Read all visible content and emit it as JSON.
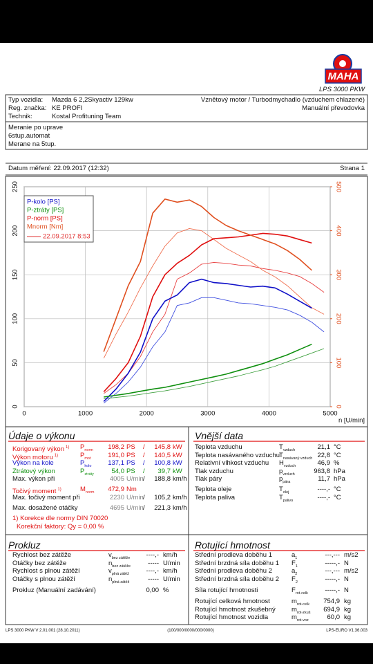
{
  "header": {
    "logo": "MAHA",
    "product": "LPS 3000 PKW"
  },
  "vehicle": {
    "rows": [
      {
        "label": "Typ vozidla:",
        "value": "Mazda 6 2,2Skyactiv 129kw"
      },
      {
        "label": "Reg. značka:",
        "value": "KE PROFI"
      },
      {
        "label": "Technik:",
        "value": "Kostal Profituning Team"
      }
    ],
    "engine": "Vznětový motor / Turbodmychadlo (vzduchem chlazené)",
    "gearbox": "Manuální převodovka"
  },
  "notes": [
    "Meranie po uprave",
    "6stup.automat",
    "Merane na 5tup."
  ],
  "date": "Datum měření: 22.09.2017 (12:32)",
  "page": "Strana 1",
  "chart_data": {
    "type": "line",
    "x_label": "n [U/min]",
    "x": [
      1300,
      1500,
      1700,
      1900,
      2100,
      2300,
      2500,
      2700,
      2900,
      3100,
      3300,
      3500,
      3700,
      3900,
      4100,
      4300,
      4500,
      4700,
      4900
    ],
    "xlim": [
      0,
      5000
    ],
    "xticks": [
      0,
      1000,
      2000,
      3000,
      4000,
      5000
    ],
    "ylim": [
      0,
      250
    ],
    "yticks": [
      0,
      50,
      100,
      150,
      200,
      250
    ],
    "y2lim": [
      0,
      500
    ],
    "y2ticks": [
      0,
      100,
      200,
      300,
      400,
      500
    ],
    "y2_color": "#e05020",
    "grid": true,
    "legend_corner": "upper left",
    "series": [
      {
        "name": "P-kolo [PS]",
        "color": "#1010c8",
        "values": [
          6,
          20,
          38,
          62,
          100,
          120,
          127,
          141,
          145,
          141,
          140,
          138,
          136,
          137,
          135,
          128,
          120,
          112,
          null
        ]
      },
      {
        "name": "P-ztráty [PS]",
        "color": "#109010",
        "values": [
          11,
          13,
          15,
          17.5,
          20,
          22,
          25,
          28,
          31,
          34,
          37,
          41,
          45,
          49,
          54,
          59,
          65,
          71,
          null
        ]
      },
      {
        "name": "P-norm [PS]",
        "color": "#e01010",
        "values": [
          17,
          32,
          50,
          80,
          125,
          150,
          163,
          172,
          184,
          191,
          192,
          193,
          195,
          197,
          196,
          194,
          190,
          186,
          null
        ]
      },
      {
        "name": "Mnorm [Nm]",
        "color": "#e05020",
        "axis": "y2",
        "values": [
          125,
          200,
          275,
          330,
          440,
          472,
          465,
          470,
          455,
          430,
          412,
          400,
          390,
          380,
          370,
          355,
          335,
          310,
          null
        ]
      }
    ],
    "comparison": {
      "name": "22.09.2017 8:53",
      "color": "#e03030",
      "series": [
        {
          "color": "#4050e0",
          "values": [
            4,
            15,
            28,
            45,
            68,
            85,
            115,
            118,
            124,
            124,
            121,
            118,
            117,
            115,
            113,
            110,
            104,
            96,
            85
          ]
        },
        {
          "color": "#40a040",
          "values": [
            9,
            10.5,
            12,
            14,
            16,
            18,
            20.5,
            23,
            26,
            29,
            32,
            35,
            38.5,
            42,
            46,
            51,
            56,
            61,
            66
          ]
        },
        {
          "color": "#e84040",
          "values": [
            15,
            25,
            38,
            57,
            85,
            105,
            145,
            152,
            162,
            164,
            163,
            161,
            160,
            157,
            155,
            152,
            148,
            140,
            130
          ]
        },
        {
          "color": "#f07050",
          "axis": "y2",
          "values": [
            110,
            165,
            215,
            270,
            320,
            365,
            395,
            405,
            400,
            380,
            360,
            345,
            330,
            310,
            295,
            275,
            250,
            225,
            210
          ]
        }
      ]
    }
  },
  "performance": {
    "title": "Údaje o výkonu",
    "groups": [
      [
        {
          "label": "Korigovaný výkon",
          "note": "1)",
          "symbol": "P",
          "symbol_sub": "norm",
          "value": "198,2",
          "unit": "PS",
          "sep": "/",
          "value2": "145,8",
          "unit2": "kW",
          "color": "#e01010"
        },
        {
          "label": "Výkon motoru",
          "note": "1)",
          "symbol": "P",
          "symbol_sub": "mot",
          "value": "191,0",
          "unit": "PS",
          "sep": "/",
          "value2": "140,5",
          "unit2": "kW",
          "color": "#e01010"
        },
        {
          "label": "Výkon na kole",
          "symbol": "P",
          "symbol_sub": "kolo",
          "value": "137,1",
          "unit": "PS",
          "sep": "/",
          "value2": "100,8",
          "unit2": "kW",
          "color": "#1010c8"
        },
        {
          "label": "Ztrátový výkon",
          "symbol": "P",
          "symbol_sub": "ztráty",
          "value": "54,0",
          "unit": "PS",
          "sep": "/",
          "value2": "39,7",
          "unit2": "kW",
          "color": "#109010"
        },
        {
          "label": "Max. výkon při",
          "value": "4005",
          "unit": "U/min",
          "sep": "/",
          "value2": "188,8",
          "unit2": "km/h",
          "color": "#111111",
          "value_color": "#888888"
        }
      ],
      [
        {
          "label": "Točivý moment",
          "note": "1)",
          "symbol": "M",
          "symbol_sub": "norm",
          "value": "472,9",
          "unit": "Nm",
          "color": "#e01010"
        },
        {
          "label": "Max. točivý moment při",
          "value": "2230",
          "unit": "U/min",
          "sep": "/",
          "value2": "105,2",
          "unit2": "km/h",
          "color": "#111111",
          "value_color": "#888888"
        }
      ],
      [
        {
          "label": "Max. dosažené otáčky",
          "value": "4695",
          "unit": "U/min",
          "sep": "/",
          "value2": "221,3",
          "unit2": "km/h",
          "color": "#111111",
          "value_color": "#888888"
        }
      ]
    ],
    "footnote": "1) Korekce dle normy DIN 70020",
    "factors": "Korekční faktory: Qy = 0,00 %",
    "note_color": "#e01010"
  },
  "external": {
    "title": "Vnější data",
    "groups": [
      [
        {
          "label": "Teplota vzduchu",
          "symbol": "T",
          "symbol_sub": "vzduch",
          "value": "21,1",
          "unit": "°C"
        },
        {
          "label": "Teplota nasávaného vzduchu",
          "symbol": "T",
          "symbol_sub": "nasávaný vzduch",
          "value": "22,8",
          "unit": "°C"
        },
        {
          "label": "Relativní vlhkost vzduchu",
          "symbol": "H",
          "symbol_sub": "vzduch",
          "value": "46,9",
          "unit": "%"
        },
        {
          "label": "Tlak vzduchu",
          "symbol": "p",
          "symbol_sub": "vzduch",
          "value": "963,8",
          "unit": "hPa"
        },
        {
          "label": "Tlak páry",
          "symbol": "p",
          "symbol_sub": "pára",
          "value": "11,7",
          "unit": "hPa"
        }
      ],
      [
        {
          "label": "Teplota oleje",
          "symbol": "T",
          "symbol_sub": "olej",
          "value": "----,-",
          "unit": "°C"
        },
        {
          "label": "Teplota paliva",
          "symbol": "T",
          "symbol_sub": "palivo",
          "value": "----,-",
          "unit": "°C"
        }
      ]
    ]
  },
  "slip": {
    "title": "Prokluz",
    "groups": [
      [
        {
          "label": "Rychlost bez zátěže",
          "symbol": "v",
          "symbol_sub": "bez zátěže",
          "value": "----,-",
          "unit": "km/h"
        },
        {
          "label": "Otáčky bez zátěže",
          "symbol": "n",
          "symbol_sub": "bez zátěže",
          "value": "-----",
          "unit": "U/min"
        },
        {
          "label": "Rychlost s plnou zátěží",
          "symbol": "v",
          "symbol_sub": "plná zátěž",
          "value": "----,-",
          "unit": "km/h"
        },
        {
          "label": "Otáčky s plnou zátěží",
          "symbol": "n",
          "symbol_sub": "plná zátěž",
          "value": "-----",
          "unit": "U/min"
        }
      ],
      [
        {
          "label": "Prokluz (Manuální zadávání)",
          "value": "0,00",
          "unit": "%"
        }
      ]
    ]
  },
  "rotating": {
    "title": "Rotující hmotnost",
    "groups": [
      [
        {
          "label": "Střední prodleva doběhu 1",
          "symbol": "a",
          "symbol_sub": "1",
          "value": "---,---",
          "unit": "m/s2"
        },
        {
          "label": "Střední brzdná síla doběhu 1",
          "symbol": "F",
          "symbol_sub": "1",
          "value": "-----,-",
          "unit": "N"
        },
        {
          "label": "Střední prodleva doběhu 2",
          "symbol": "a",
          "symbol_sub": "2",
          "value": "---,---",
          "unit": "m/s2"
        },
        {
          "label": "Střední brzdná síla doběhu 2",
          "symbol": "F",
          "symbol_sub": "2",
          "value": "-----,-",
          "unit": "N"
        }
      ],
      [
        {
          "label": "Síla rotující hmotnosti",
          "symbol": "F",
          "symbol_sub": "rot-celk",
          "value": "-----,-",
          "unit": "N"
        }
      ],
      [
        {
          "label": "Rotující celková hmotnost",
          "symbol": "m",
          "symbol_sub": "rot-celk",
          "value": "754,9",
          "unit": "kg"
        },
        {
          "label": "Rotující hmotnost zkušebný",
          "symbol": "m",
          "symbol_sub": "rot-zkuš",
          "value": "694,9",
          "unit": "kg"
        },
        {
          "label": "Rotující hmotnost vozidla",
          "symbol": "m",
          "symbol_sub": "rot-voz",
          "value": "60,0",
          "unit": "kg"
        }
      ]
    ]
  },
  "footer": {
    "left": "LPS 3000 PKW V 2.01.001 (28.10.2011)",
    "center": "(100/000/0000/000/0000)",
    "right": "LPS-EURO V1.36.003"
  }
}
